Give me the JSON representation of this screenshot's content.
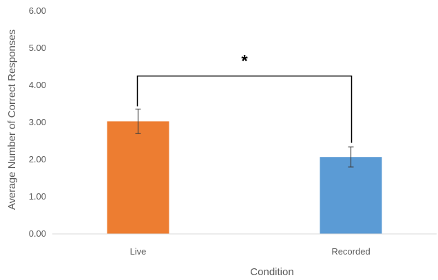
{
  "chart_data": {
    "type": "bar",
    "title": "",
    "xlabel": "Condition",
    "ylabel": "Average Number of Correct Responses",
    "categories": [
      "Live",
      "Recorded"
    ],
    "values": [
      3.03,
      2.07
    ],
    "error": [
      0.33,
      0.27
    ],
    "bar_colors": [
      "#ED7D31",
      "#5B9BD5"
    ],
    "ylim": [
      0,
      6
    ],
    "yticks": [
      "0.00",
      "1.00",
      "2.00",
      "3.00",
      "4.00",
      "5.00",
      "6.00"
    ],
    "grid": false,
    "legend": "none",
    "significance": {
      "between": [
        "Live",
        "Recorded"
      ],
      "label": "*",
      "bracket_y": 4.25
    }
  }
}
